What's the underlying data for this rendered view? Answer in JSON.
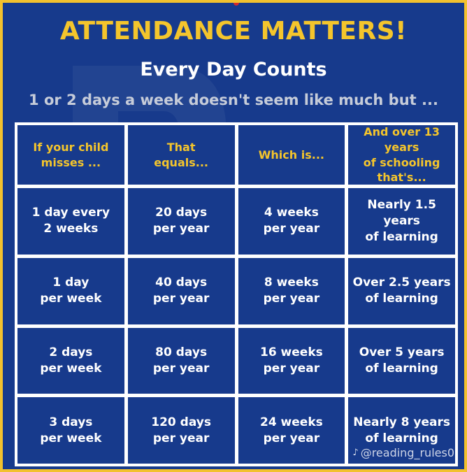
{
  "header": {
    "title": "ATTENDANCE MATTERS!",
    "subtitle": "Every Day Counts",
    "intro": "1 or 2 days a week doesn't seem like much but ..."
  },
  "table": {
    "headers": [
      "If your child\nmisses ...",
      "That\nequals...",
      "Which is...",
      "And over 13 years\nof schooling\nthat's..."
    ],
    "rows": [
      [
        "1 day every\n2 weeks",
        "20 days\nper year",
        "4 weeks\nper year",
        "Nearly 1.5 years\nof learning"
      ],
      [
        "1 day\nper week",
        "40 days\nper year",
        "8 weeks\nper year",
        "Over 2.5 years\nof learning"
      ],
      [
        "2 days\nper week",
        "80 days\nper year",
        "16 weeks\nper year",
        "Over 5 years\nof learning"
      ],
      [
        "3 days\nper week",
        "120 days\nper year",
        "24 weeks\nper year",
        "Nearly 8 years\nof learning"
      ]
    ]
  },
  "credit": {
    "icon": "music-note-icon",
    "handle": "@reading_rules0"
  },
  "colors": {
    "background": "#173a8c",
    "accent": "#f4c52c",
    "border": "#f2c12e",
    "text": "#ffffff"
  }
}
